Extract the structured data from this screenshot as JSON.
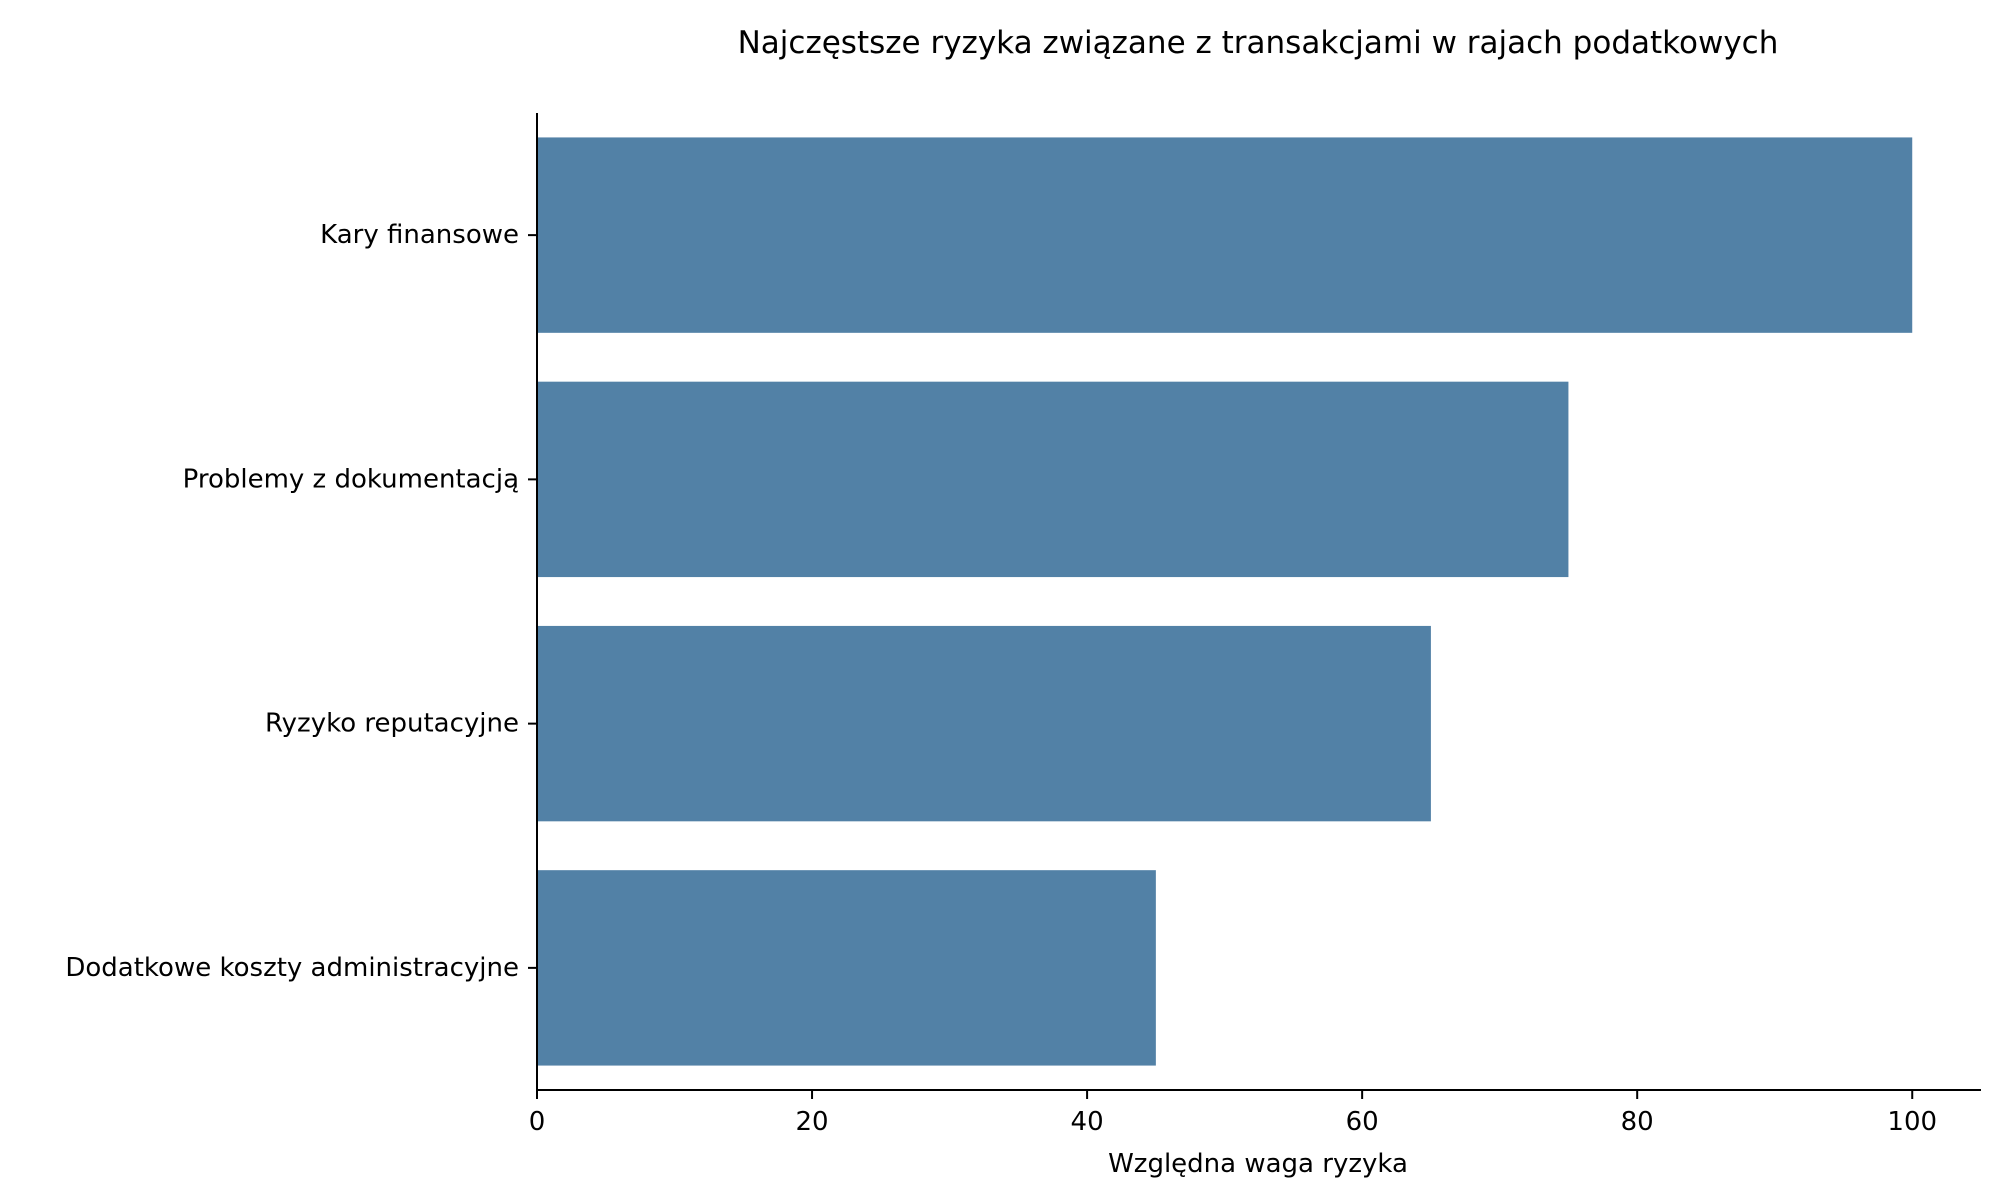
{
  "chart_data": {
    "type": "bar",
    "orientation": "horizontal",
    "title": "Najczęstsze ryzyka związane z transakcjami w rajach podatkowych",
    "xlabel": "Względna waga ryzyka",
    "ylabel": "",
    "categories": [
      "Kary finansowe",
      "Problemy z dokumentacją",
      "Ryzyko reputacyjne",
      "Dodatkowe koszty administracyjne"
    ],
    "values": [
      100,
      75,
      65,
      45
    ],
    "xlim": [
      0,
      105
    ],
    "xticks": [
      0,
      20,
      40,
      60,
      80,
      100
    ],
    "grid": false,
    "legend": "none",
    "bar_color": "#5281a6"
  }
}
